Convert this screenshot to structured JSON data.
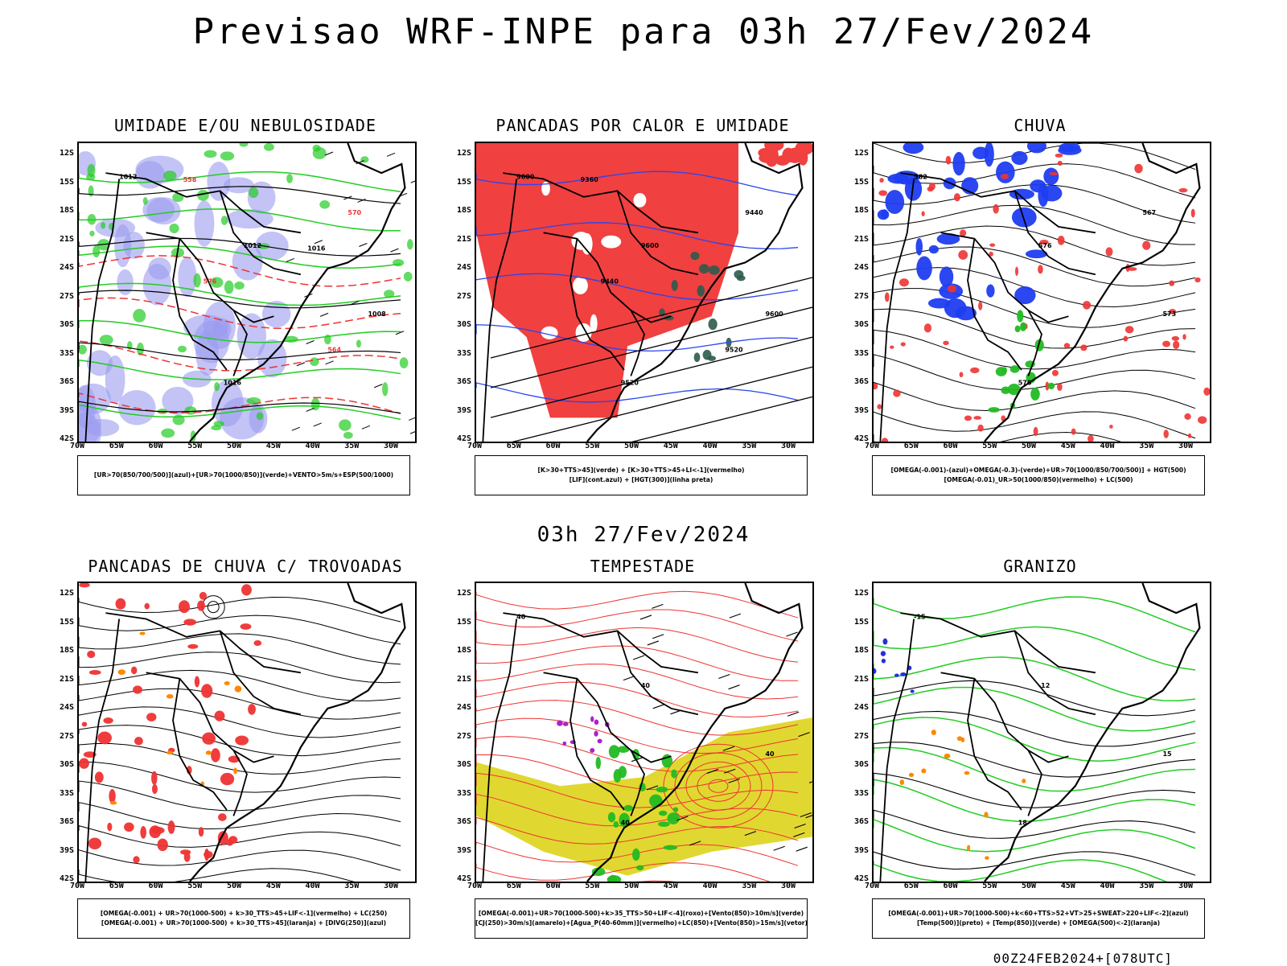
{
  "title": "Previsao WRF-INPE  para 03h 27/Fev/2024",
  "subtitle": "03h 27/Fev/2024",
  "footer": "00Z24FEB2024+[078UTC]",
  "axes": {
    "lat_labels": [
      "12S",
      "15S",
      "18S",
      "21S",
      "24S",
      "27S",
      "30S",
      "33S",
      "36S",
      "39S",
      "42S"
    ],
    "lon_labels": [
      "70W",
      "65W",
      "60W",
      "55W",
      "50W",
      "45W",
      "40W",
      "35W",
      "30W"
    ]
  },
  "panels": [
    {
      "id": "umidade",
      "title": "UMIDADE E/OU NEBULOSIDADE",
      "legend": [
        "[UR>70(850/700/500)](azul)+[UR>70(1000/850)](verde)+VENTO>5m/s+ESP(500/1000)"
      ],
      "contour_labels": [
        "1012",
        "1012",
        "1008",
        "1016",
        "570",
        "576",
        "564",
        "558",
        "1016"
      ],
      "colors": {
        "blue": "#9b9bf0",
        "green": "#22cc22",
        "red": "#ee3333"
      }
    },
    {
      "id": "pancadas-calor",
      "title": "PANCADAS POR CALOR E UMIDADE",
      "legend": [
        "[K>30+TTS>45](verde) + [K>30+TTS>45+LI<-1](vermelho)",
        "[LIF](cont.azul) + [HGT(300)](linha preta)"
      ],
      "contour_labels": [
        "9600",
        "9600",
        "9600",
        "9520",
        "9440",
        "9440",
        "9520",
        "9360"
      ],
      "colors": {
        "red": "#f04040",
        "darkgreen": "#2e5a4e",
        "blue": "#2a44ee"
      }
    },
    {
      "id": "chuva",
      "title": "CHUVA",
      "legend": [
        "[OMEGA(-0.001)-(azul)+OMEGA(-0.3)-(verde)+UR>70(1000/850/700/500)] + HGT(500)",
        "[OMEGA(-0.01)_UR>50(1000/850)(vermelho) + LC(500)"
      ],
      "contour_labels": [
        "582",
        "576",
        "573",
        "570",
        "567"
      ],
      "colors": {
        "blue": "#1f3df0",
        "red": "#ee3333",
        "green": "#22bb22"
      }
    },
    {
      "id": "trovoadas",
      "title": "PANCADAS DE CHUVA C/ TROVOADAS",
      "legend": [
        "[OMEGA(-0.001) + UR>70(1000-500) + k>30_TTS>45+LIF<-1](vermelho) + LC(250)",
        "[OMEGA(-0.001) + UR>70(1000-500) + k>30_TTS>45](laranja) + [DIVG(250)](azul)"
      ],
      "contour_labels": [],
      "colors": {
        "red": "#ee3333",
        "orange": "#ff8800",
        "blue": "#2233dd"
      }
    },
    {
      "id": "tempestade",
      "title": "TEMPESTADE",
      "legend": [
        "[OMEGA(-0.001)+UR>70(1000-500)+k>35_TTS>50+LIF<-4](roxo)+[Vento(850)>10m/s](verde)",
        "[CJ(250)>30m/s](amarelo)+[Agua_P(40-60mm)](vermelho)+LC(850)+[Vento(850)>15m/s](vetor)"
      ],
      "contour_labels": [
        "40",
        "40",
        "40",
        "40"
      ],
      "colors": {
        "yellow": "#e0d830",
        "red": "#ee3333",
        "green": "#22bb22",
        "purple": "#aa22cc"
      }
    },
    {
      "id": "granizo",
      "title": "GRANIZO",
      "legend": [
        "[OMEGA(-0.001)+UR>70(1000-500)+k<60+TTS>52+VT>25+SWEAT>220+LIF<-2](azul)",
        "[Temp(500)](preto) + [Temp(850)](verde) + [OMEGA(500)<-2](laranja)"
      ],
      "contour_labels": [
        "-15",
        "-12",
        "15",
        "18"
      ],
      "colors": {
        "green": "#22cc22",
        "orange": "#ff8800",
        "blue": "#2233dd"
      }
    }
  ]
}
